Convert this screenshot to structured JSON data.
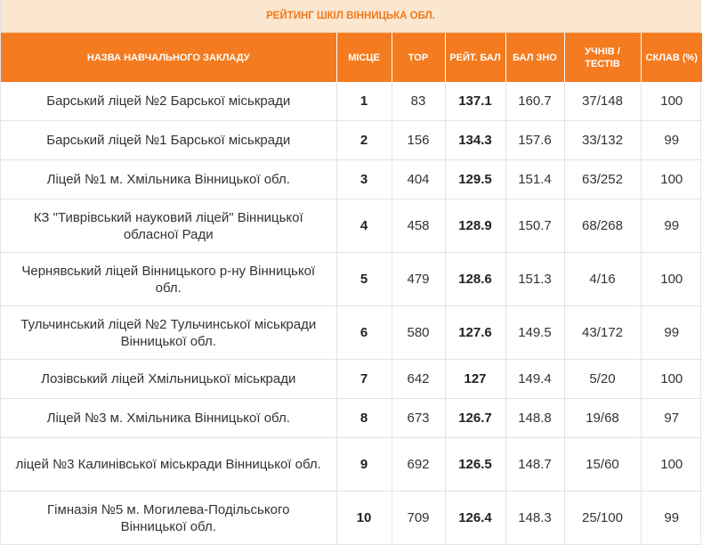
{
  "caption": "РЕЙТИНГ ШКІЛ ВІННИЦЬКА ОБЛ.",
  "columns": {
    "name": "НАЗВА НАВЧАЛЬНОГО ЗАКЛАДУ",
    "place": "МІСЦЕ",
    "top": "TOP",
    "rating": "РЕЙТ. БАЛ",
    "zno": "БАЛ ЗНО",
    "students": "УЧНІВ / ТЕСТІВ",
    "passed": "СКЛАВ (%)"
  },
  "rows": [
    {
      "name": "Барський ліцей №2 Барської міськради",
      "place": "1",
      "top": "83",
      "rating": "137.1",
      "zno": "160.7",
      "students": "37/148",
      "passed": "100"
    },
    {
      "name": "Барський ліцей №1 Барської міськради",
      "place": "2",
      "top": "156",
      "rating": "134.3",
      "zno": "157.6",
      "students": "33/132",
      "passed": "99"
    },
    {
      "name": "Ліцей №1 м. Хмільника Вінницької обл.",
      "place": "3",
      "top": "404",
      "rating": "129.5",
      "zno": "151.4",
      "students": "63/252",
      "passed": "100"
    },
    {
      "name": "КЗ \"Тиврівський науковий ліцей\" Вінницької обласної Ради",
      "place": "4",
      "top": "458",
      "rating": "128.9",
      "zno": "150.7",
      "students": "68/268",
      "passed": "99"
    },
    {
      "name": "Чернявський ліцей Вінницького р-ну Вінницької обл.",
      "place": "5",
      "top": "479",
      "rating": "128.6",
      "zno": "151.3",
      "students": "4/16",
      "passed": "100"
    },
    {
      "name": "Тульчинський ліцей №2 Тульчинської міськради Вінницької обл.",
      "place": "6",
      "top": "580",
      "rating": "127.6",
      "zno": "149.5",
      "students": "43/172",
      "passed": "99"
    },
    {
      "name": "Лозівський ліцей Хмільницької міськради",
      "place": "7",
      "top": "642",
      "rating": "127",
      "zno": "149.4",
      "students": "5/20",
      "passed": "100"
    },
    {
      "name": "Ліцей №3 м. Хмільника Вінницької обл.",
      "place": "8",
      "top": "673",
      "rating": "126.7",
      "zno": "148.8",
      "students": "19/68",
      "passed": "97"
    },
    {
      "name": "ліцей №3 Калинівської міськради Вінницької обл.",
      "place": "9",
      "top": "692",
      "rating": "126.5",
      "zno": "148.7",
      "students": "15/60",
      "passed": "100"
    },
    {
      "name": "Гімназія №5 м. Могилева-Подільського Вінницької обл.",
      "place": "10",
      "top": "709",
      "rating": "126.4",
      "zno": "148.3",
      "students": "25/100",
      "passed": "99"
    }
  ]
}
